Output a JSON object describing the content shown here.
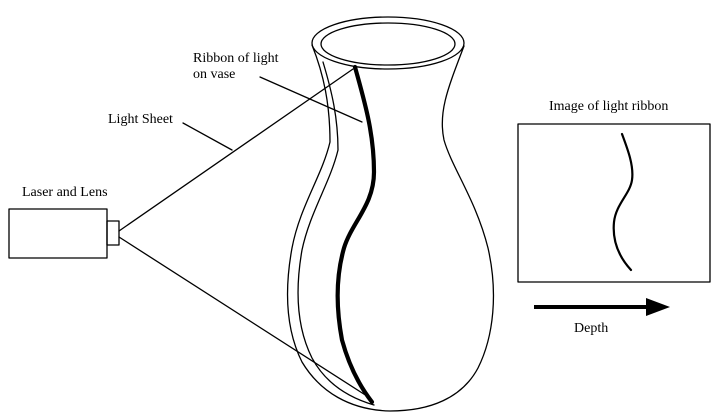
{
  "labels": {
    "ribbon_line1": "Ribbon of light",
    "ribbon_line2": "on vase",
    "light_sheet": "Light Sheet",
    "laser_and_lens": "Laser and Lens",
    "image_of_ribbon": "Image of light ribbon",
    "depth": "Depth"
  },
  "icons": {
    "vase": "vase-outline-icon",
    "laser": "laser-box-icon",
    "arrow": "right-arrow-icon"
  },
  "colors": {
    "stroke": "#000000",
    "background": "#ffffff"
  }
}
